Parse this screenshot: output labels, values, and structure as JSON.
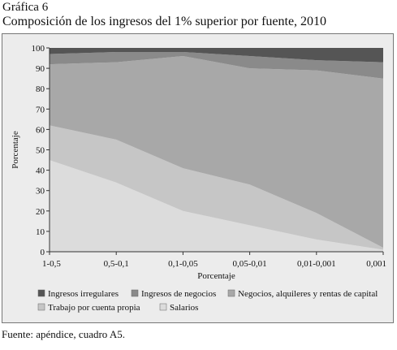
{
  "header": {
    "label": "Gráfica 6",
    "title": "Composición de los ingresos del 1% superior por fuente, 2010"
  },
  "source": "Fuente: apéndice, cuadro A5.",
  "chart_data": {
    "type": "area",
    "stacked": true,
    "categories": [
      "1-0,5",
      "0,5-0,1",
      "0,1-0,05",
      "0,05-0,01",
      "0,01-0,001",
      "0,001"
    ],
    "ylabel": "Porcentaje",
    "xlabel": "Porcentaje",
    "ylim": [
      0,
      100
    ],
    "yticks": [
      0,
      10,
      20,
      30,
      40,
      50,
      60,
      70,
      80,
      90,
      100
    ],
    "grid": false,
    "legend_position": "bottom",
    "series": [
      {
        "name": "Salarios",
        "color": "#dcdcdc",
        "values": [
          45,
          34,
          20,
          13,
          6,
          1
        ]
      },
      {
        "name": "Trabajo por cuenta propia",
        "color": "#c6c6c6",
        "values": [
          17,
          21,
          21,
          20,
          13,
          1
        ]
      },
      {
        "name": "Negocios, alquileres y rentas de capital",
        "color": "#a8a8a8",
        "values": [
          30,
          38,
          55,
          57,
          70,
          83
        ]
      },
      {
        "name": "Ingresos de negocios",
        "color": "#8a8a8a",
        "values": [
          5,
          5,
          2,
          6,
          5,
          8
        ]
      },
      {
        "name": "Ingresos irregulares",
        "color": "#555555",
        "values": [
          3,
          2,
          2,
          4,
          6,
          7
        ]
      }
    ],
    "legend_order": [
      "Ingresos irregulares",
      "Ingresos de negocios",
      "Negocios, alquileres y rentas de capital",
      "Trabajo por cuenta propia",
      "Salarios"
    ]
  }
}
